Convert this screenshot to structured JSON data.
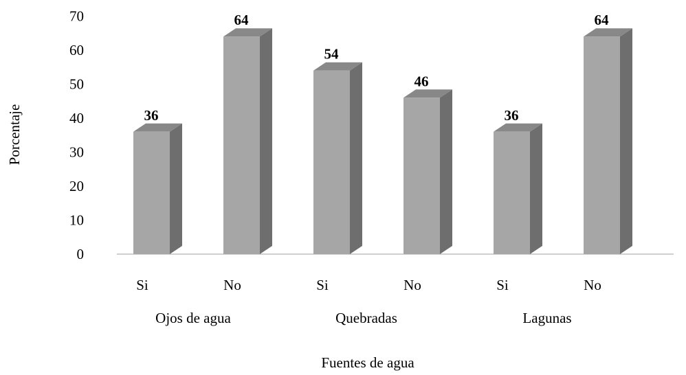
{
  "chart_data": {
    "type": "bar",
    "style": "3d-column",
    "categories": [
      "Si",
      "No",
      "Si",
      "No",
      "Si",
      "No"
    ],
    "groups": [
      {
        "label": "Ojos de agua",
        "categories": [
          "Si",
          "No"
        ]
      },
      {
        "label": "Quebradas",
        "categories": [
          "Si",
          "No"
        ]
      },
      {
        "label": "Lagunas",
        "categories": [
          "Si",
          "No"
        ]
      }
    ],
    "values": [
      36,
      64,
      54,
      46,
      36,
      64
    ],
    "data_labels": [
      "36",
      "64",
      "54",
      "46",
      "36",
      "64"
    ],
    "xlabel": "Fuentes de agua",
    "ylabel": "Porcentaje",
    "ylim": [
      0,
      70
    ],
    "yticks": [
      "0",
      "10",
      "20",
      "30",
      "40",
      "50",
      "60",
      "70"
    ],
    "grid": false,
    "legend": "none",
    "colors": {
      "front": "#a6a6a6",
      "side": "#6e6e6e",
      "top": "#888888",
      "axis": "#a0a0a0"
    }
  }
}
